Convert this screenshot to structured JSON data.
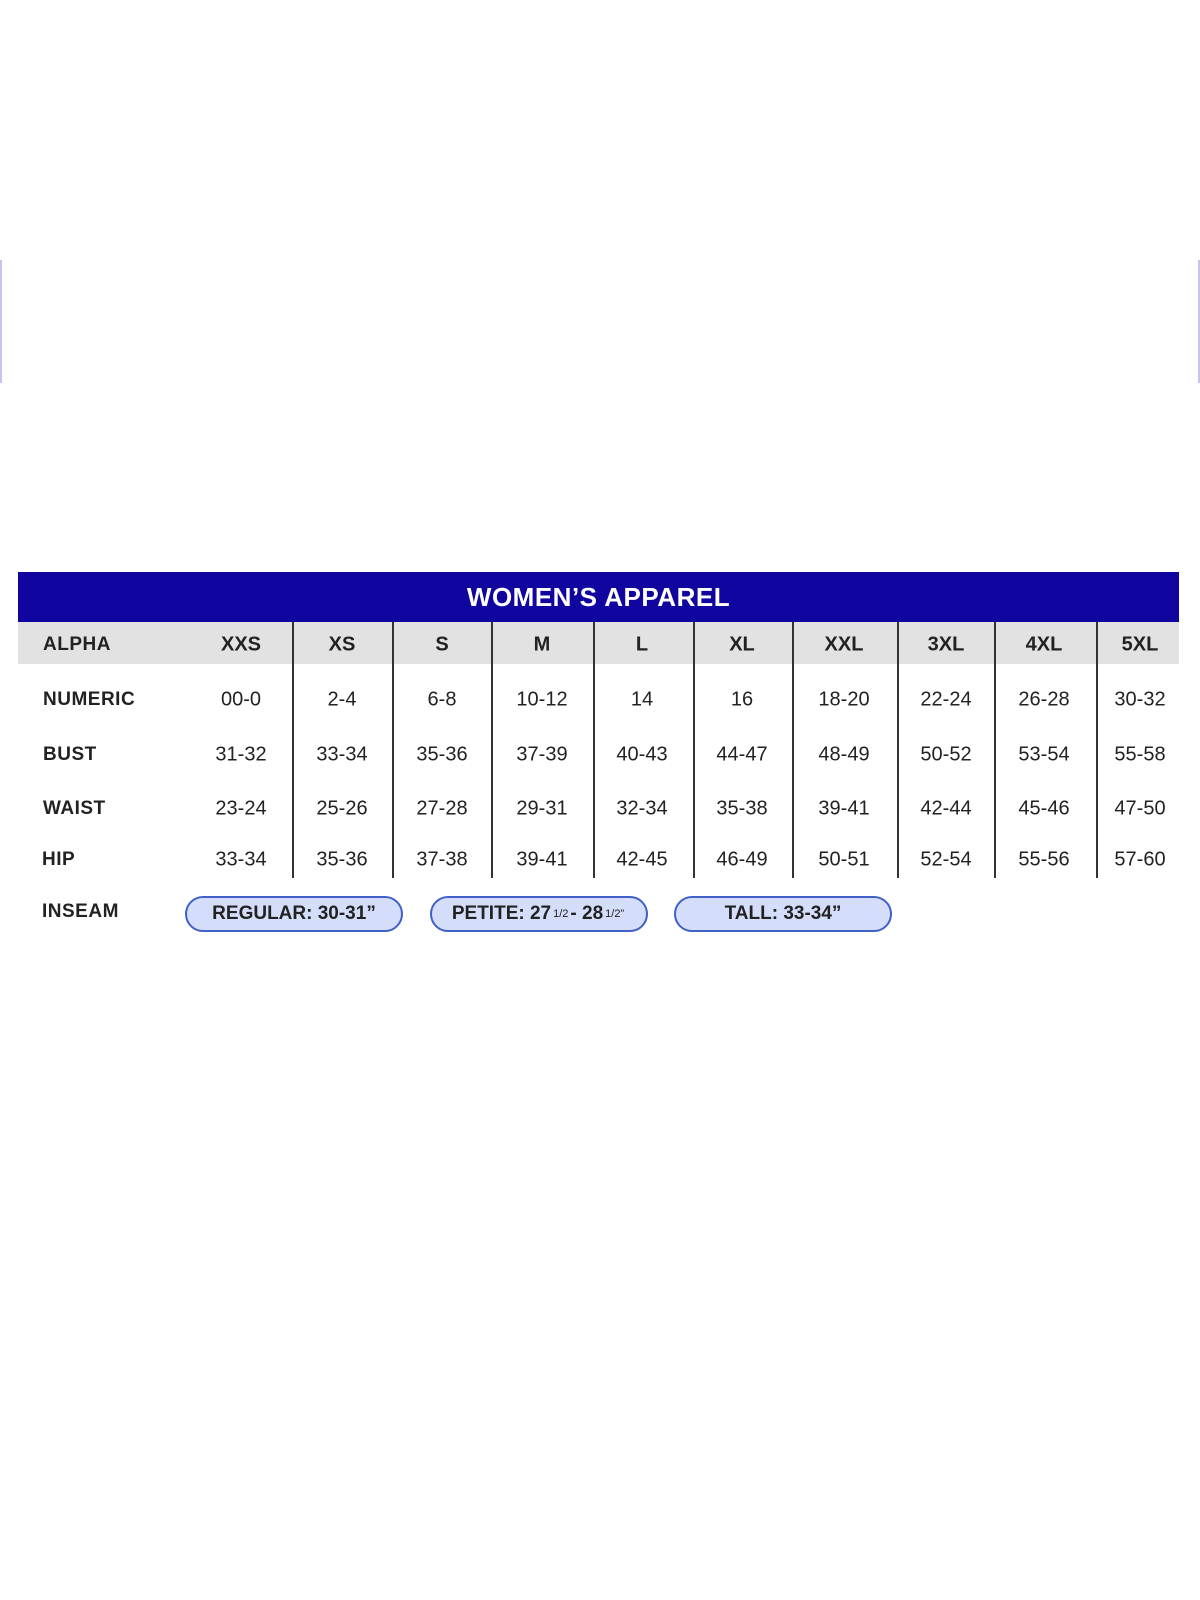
{
  "title": "WOMEN’S APPAREL",
  "accent_color": "#10069f",
  "pill_color": "#d4defb",
  "rows": [
    {
      "label": "ALPHA",
      "values": [
        "XXS",
        "XS",
        "S",
        "M",
        "L",
        "XL",
        "XXL",
        "3XL",
        "4XL",
        "5XL"
      ]
    },
    {
      "label": "NUMERIC",
      "values": [
        "00-0",
        "2-4",
        "6-8",
        "10-12",
        "14",
        "16",
        "18-20",
        "22-24",
        "26-28",
        "30-32"
      ]
    },
    {
      "label": "BUST",
      "values": [
        "31-32",
        "33-34",
        "35-36",
        "37-39",
        "40-43",
        "44-47",
        "48-49",
        "50-52",
        "53-54",
        "55-58"
      ]
    },
    {
      "label": "WAIST",
      "values": [
        "23-24",
        "25-26",
        "27-28",
        "29-31",
        "32-34",
        "35-38",
        "39-41",
        "42-44",
        "45-46",
        "47-50"
      ]
    },
    {
      "label": "HIP",
      "values": [
        "33-34",
        "35-36",
        "37-38",
        "39-41",
        "42-45",
        "46-49",
        "50-51",
        "52-54",
        "55-56",
        "57-60"
      ]
    }
  ],
  "inseam": {
    "label": "INSEAM",
    "regular": "REGULAR: 30-31”",
    "petite": {
      "prefix": "PETITE: 27",
      "sup1": "1/2",
      "mid": "- 28",
      "sup2": "1/2”"
    },
    "tall": "TALL: 33-34”"
  }
}
